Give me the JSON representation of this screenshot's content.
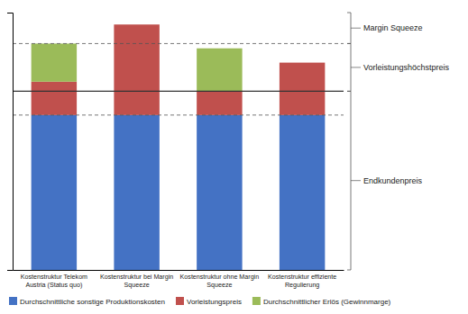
{
  "chart_data": {
    "type": "bar",
    "stacked": true,
    "categories": [
      "Kostenstruktur Telekom\nAustria (Status quo)",
      "Kostenstruktur bei Margin\nSqueeze",
      "Kostenstruktur ohne Margin\nSqueeze",
      "Kostenstruktur effiziente\nRegulierung"
    ],
    "series": [
      {
        "name": "Durchschnittliche sonstige Produktionskosten",
        "color": "#4472C4",
        "values": [
          6.5,
          6.5,
          6.5,
          6.5
        ]
      },
      {
        "name": "Vorleistungspreis",
        "color": "#C0504D",
        "values": [
          1.4,
          3.8,
          1.0,
          2.2
        ]
      },
      {
        "name": "Durchschnittlicher Erlös (Gewinnmarge)",
        "color": "#9BBB59",
        "values": [
          1.6,
          0.0,
          1.8,
          0.0
        ]
      }
    ],
    "ylim": [
      0.0,
      10.8
    ],
    "yticks": [],
    "tick_labels": "x",
    "grid": false,
    "legend": "bottom",
    "reference_lines": [
      {
        "y": 9.5,
        "line_style": "dashed"
      },
      {
        "y": 7.5,
        "line_style": "solid"
      },
      {
        "y": 6.5,
        "line_style": "dashed"
      }
    ],
    "annotations": [
      {
        "text": "Margin Squeeze",
        "y": [
          9.5,
          10.8
        ]
      },
      {
        "text": "Vorleistungshöchstpreis",
        "y": [
          7.5,
          9.5
        ]
      },
      {
        "text": "Endkundenpreis",
        "y": [
          0.0,
          7.5
        ]
      }
    ]
  }
}
